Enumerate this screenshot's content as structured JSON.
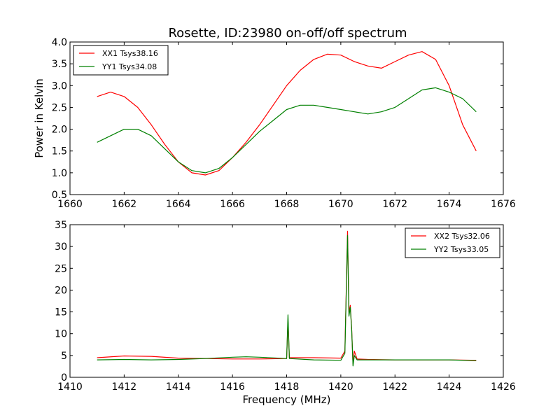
{
  "figure_title": "Rosette, ID:23980 on-off/off spectrum",
  "colors": {
    "red": "#ff0000",
    "green": "#008000"
  },
  "chart_data": [
    {
      "type": "line",
      "title": "Rosette, ID:23980 on-off/off spectrum",
      "xlabel": "",
      "ylabel": "Power in Kelvin",
      "xlim": [
        1660,
        1676
      ],
      "ylim": [
        0.5,
        4.0
      ],
      "xticks": [
        1660,
        1662,
        1664,
        1666,
        1668,
        1670,
        1672,
        1674,
        1676
      ],
      "yticks": [
        0.5,
        1.0,
        1.5,
        2.0,
        2.5,
        3.0,
        3.5,
        4.0
      ],
      "xtick_labels": [
        "1660",
        "1662",
        "1664",
        "1666",
        "1668",
        "1670",
        "1672",
        "1674",
        "1676"
      ],
      "ytick_labels": [
        "0.5",
        "1.0",
        "1.5",
        "2.0",
        "2.5",
        "3.0",
        "3.5",
        "4.0"
      ],
      "legend_position": "top-left",
      "grid": false,
      "series": [
        {
          "name": "XX1 Tsys38.16",
          "color": "#ff0000",
          "x": [
            1661.0,
            1661.5,
            1662.0,
            1662.5,
            1663.0,
            1663.5,
            1664.0,
            1664.5,
            1665.0,
            1665.5,
            1666.0,
            1666.5,
            1667.0,
            1667.5,
            1668.0,
            1668.5,
            1669.0,
            1669.5,
            1670.0,
            1670.5,
            1671.0,
            1671.5,
            1672.0,
            1672.5,
            1673.0,
            1673.5,
            1674.0,
            1674.5,
            1675.0
          ],
          "y": [
            2.75,
            2.85,
            2.75,
            2.5,
            2.1,
            1.65,
            1.25,
            1.0,
            0.95,
            1.05,
            1.35,
            1.7,
            2.1,
            2.55,
            3.0,
            3.35,
            3.6,
            3.72,
            3.7,
            3.55,
            3.45,
            3.4,
            3.55,
            3.7,
            3.78,
            3.6,
            3.0,
            2.1,
            1.5
          ]
        },
        {
          "name": "YY1 Tsys34.08",
          "color": "#008000",
          "x": [
            1661.0,
            1661.5,
            1662.0,
            1662.5,
            1663.0,
            1663.5,
            1664.0,
            1664.5,
            1665.0,
            1665.5,
            1666.0,
            1666.5,
            1667.0,
            1667.5,
            1668.0,
            1668.5,
            1669.0,
            1669.5,
            1670.0,
            1670.5,
            1671.0,
            1671.5,
            1672.0,
            1672.5,
            1673.0,
            1673.5,
            1674.0,
            1674.5,
            1675.0
          ],
          "y": [
            1.7,
            1.85,
            2.0,
            2.0,
            1.85,
            1.55,
            1.25,
            1.05,
            1.0,
            1.1,
            1.35,
            1.65,
            1.95,
            2.2,
            2.45,
            2.55,
            2.55,
            2.5,
            2.45,
            2.4,
            2.35,
            2.4,
            2.5,
            2.7,
            2.9,
            2.95,
            2.85,
            2.7,
            2.4
          ]
        }
      ]
    },
    {
      "type": "line",
      "title": "",
      "xlabel": "Frequency (MHz)",
      "ylabel": "",
      "xlim": [
        1410,
        1426
      ],
      "ylim": [
        0,
        35
      ],
      "xticks": [
        1410,
        1412,
        1414,
        1416,
        1418,
        1420,
        1422,
        1424,
        1426
      ],
      "yticks": [
        0,
        5,
        10,
        15,
        20,
        25,
        30,
        35
      ],
      "xtick_labels": [
        "1410",
        "1412",
        "1414",
        "1416",
        "1418",
        "1420",
        "1422",
        "1424",
        "1426"
      ],
      "ytick_labels": [
        "0",
        "5",
        "10",
        "15",
        "20",
        "25",
        "30",
        "35"
      ],
      "legend_position": "top-right",
      "grid": false,
      "series": [
        {
          "name": "XX2 Tsys32.06",
          "color": "#ff0000",
          "x": [
            1411.0,
            1412.0,
            1413.0,
            1414.0,
            1415.0,
            1416.0,
            1417.0,
            1418.0,
            1418.05,
            1418.1,
            1419.0,
            1420.0,
            1420.15,
            1420.25,
            1420.3,
            1420.35,
            1420.4,
            1420.45,
            1420.5,
            1420.6,
            1421.0,
            1422.0,
            1423.0,
            1424.0,
            1425.0
          ],
          "y": [
            4.5,
            4.9,
            4.8,
            4.4,
            4.3,
            4.2,
            4.2,
            4.3,
            13.0,
            4.5,
            4.5,
            4.4,
            6.0,
            33.5,
            15.0,
            16.5,
            11.0,
            3.0,
            6.0,
            4.2,
            4.1,
            4.0,
            4.0,
            4.0,
            3.9
          ]
        },
        {
          "name": "YY2 Tsys33.05",
          "color": "#008000",
          "x": [
            1411.0,
            1412.0,
            1413.0,
            1414.0,
            1415.0,
            1416.0,
            1416.5,
            1417.0,
            1418.0,
            1418.05,
            1418.1,
            1419.0,
            1420.0,
            1420.15,
            1420.25,
            1420.3,
            1420.35,
            1420.4,
            1420.45,
            1420.5,
            1420.6,
            1421.0,
            1422.0,
            1423.0,
            1424.0,
            1425.0
          ],
          "y": [
            4.0,
            4.1,
            4.0,
            4.1,
            4.3,
            4.6,
            4.7,
            4.6,
            4.3,
            14.3,
            4.3,
            4.0,
            3.9,
            5.5,
            32.5,
            14.0,
            16.0,
            11.0,
            2.6,
            5.0,
            4.0,
            4.0,
            4.0,
            4.0,
            4.0,
            3.8
          ]
        }
      ]
    }
  ]
}
